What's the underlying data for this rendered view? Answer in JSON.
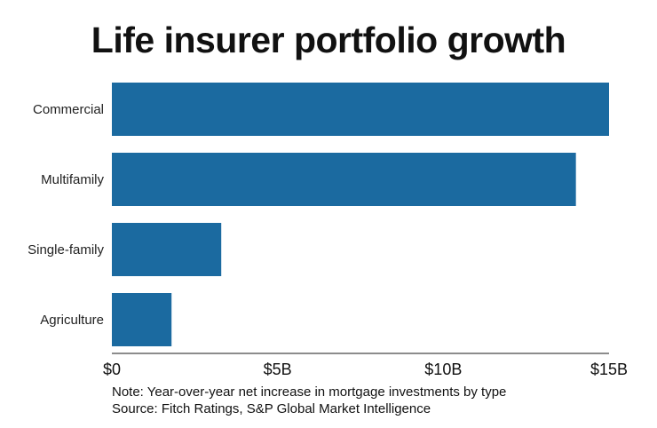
{
  "chart_data": {
    "type": "bar",
    "orientation": "horizontal",
    "title": "Life insurer portfolio growth",
    "categories": [
      "Commercial",
      "Multifamily",
      "Single-family",
      "Agriculture"
    ],
    "values": [
      15.0,
      14.0,
      3.3,
      1.8
    ],
    "unit": "$B",
    "xlim": [
      0,
      15
    ],
    "xticks": [
      0,
      5,
      10,
      15
    ],
    "xtick_labels": [
      "$0",
      "$5B",
      "$10B",
      "$15B"
    ],
    "xlabel": "",
    "ylabel": "",
    "grid": false,
    "bar_color": "#1b6aa0",
    "note": "Note: Year-over-year net increase in mortgage investments by type",
    "source": "Source: Fitch Ratings, S&P Global Market Intelligence"
  }
}
